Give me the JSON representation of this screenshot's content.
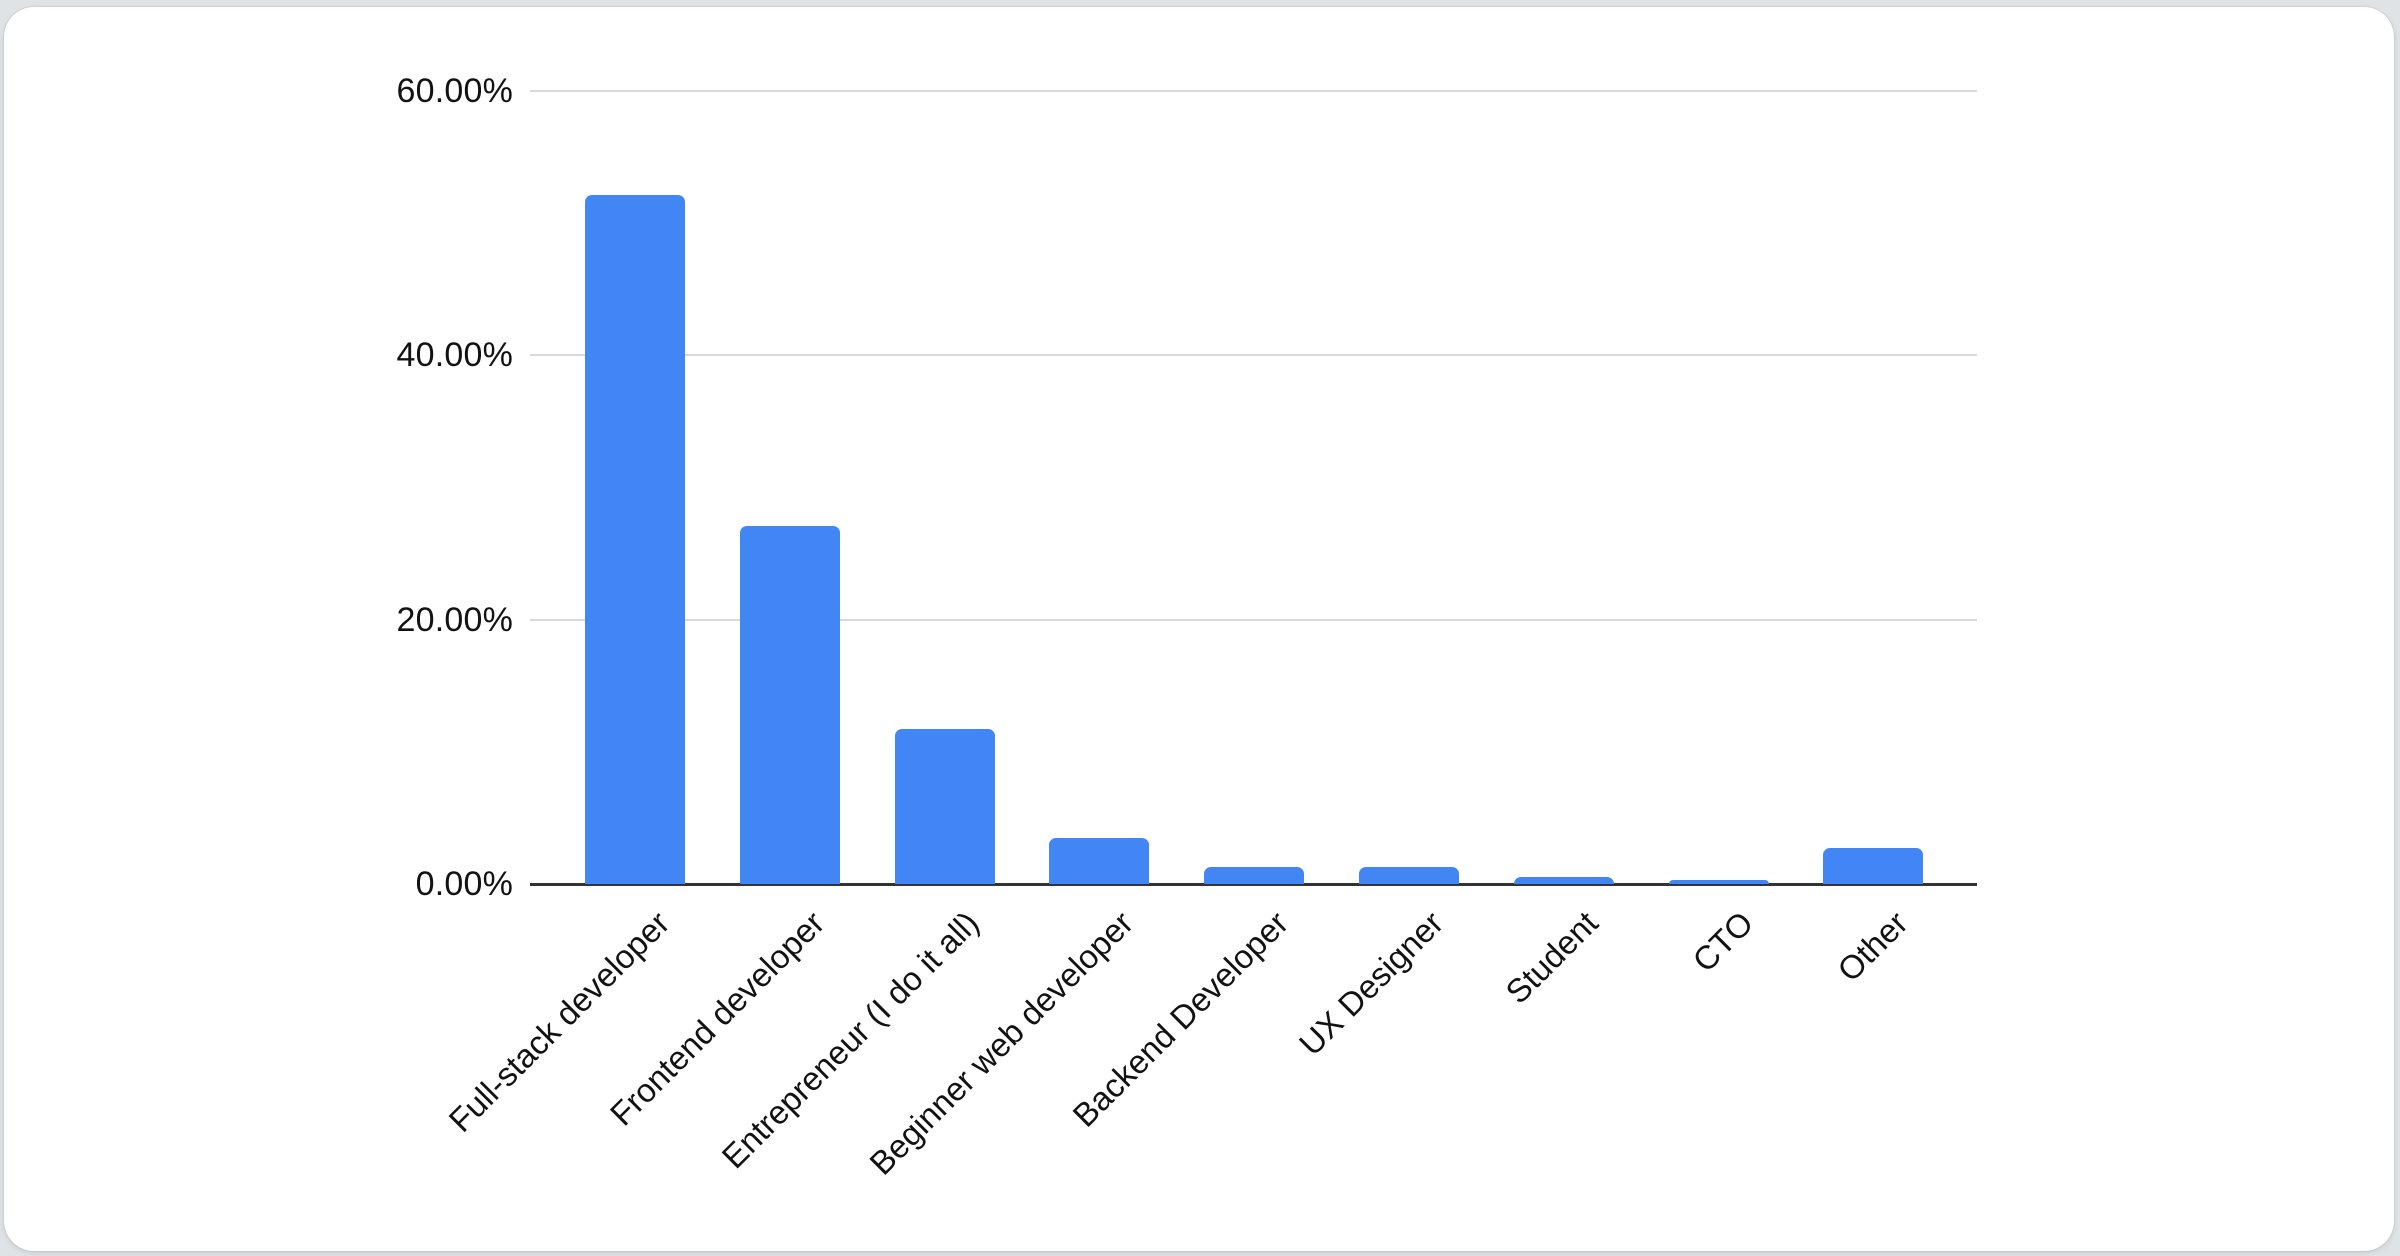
{
  "page": {
    "background_color": "#dfe3e5",
    "card_background_color": "#ffffff"
  },
  "chart_data": {
    "type": "bar",
    "title": "",
    "categories": [
      "Full-stack developer",
      "Frontend developer",
      "Entrepreneur (I do it all)",
      "Beginner web developer",
      "Backend Developer",
      "UX Designer",
      "Student",
      "CTO",
      "Other"
    ],
    "values": [
      52.1,
      27.1,
      11.7,
      3.5,
      1.3,
      1.3,
      0.5,
      0.3,
      2.7
    ],
    "unit": "%",
    "xlabel": "",
    "ylabel": "",
    "ylim": [
      0,
      60
    ],
    "yticks": [
      {
        "value": 0,
        "label": "0.00%"
      },
      {
        "value": 20,
        "label": "20.00%"
      },
      {
        "value": 40,
        "label": "40.00%"
      },
      {
        "value": 60,
        "label": "60.00%"
      }
    ],
    "grid": true,
    "legend_position": "none",
    "x_label_rotation_deg": -45,
    "bar_color": "#4285f4",
    "gridline_color": "#d9d9d9",
    "axis_line_color": "#333333",
    "text_color": "#121212"
  }
}
